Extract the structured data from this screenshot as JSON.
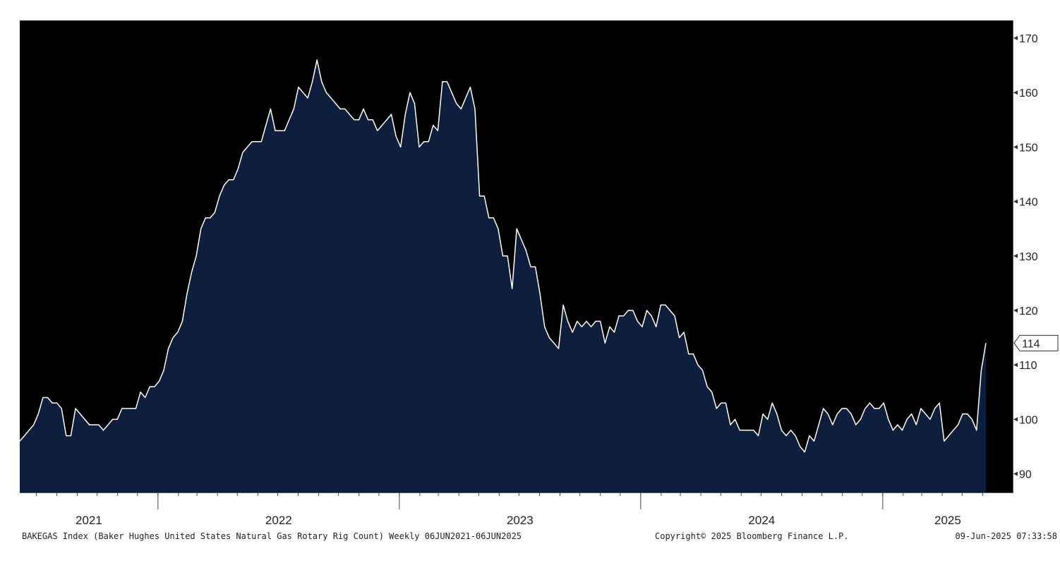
{
  "chart_data": {
    "type": "area",
    "title": "",
    "xlabel": "",
    "ylabel": "",
    "ylim": [
      86,
      172
    ],
    "yticks": [
      90,
      100,
      110,
      120,
      130,
      140,
      150,
      160,
      170
    ],
    "year_labels": [
      "2021",
      "2022",
      "2023",
      "2024",
      "2025"
    ],
    "last_value_label": "114",
    "x_start": "2021-06-06",
    "x_end": "2025-06-06",
    "frequency": "Weekly",
    "colors": {
      "line": "#ffffff",
      "fill": "#0e1f3d",
      "background": "#000000"
    },
    "series": [
      {
        "values": [
          96,
          97,
          98,
          99,
          101,
          104,
          104,
          103,
          103,
          102,
          97,
          97,
          102,
          101,
          100,
          99,
          99,
          99,
          98,
          99,
          100,
          100,
          102,
          102,
          102,
          102,
          105,
          104,
          106,
          106,
          107,
          109,
          113,
          115,
          116,
          118,
          123,
          127,
          130,
          135,
          137,
          137,
          138,
          141,
          143,
          144,
          144,
          146,
          149,
          150,
          151,
          151,
          151,
          154,
          157,
          153,
          153,
          153,
          155,
          157,
          161,
          160,
          159,
          162,
          166,
          162,
          160,
          159,
          158,
          157,
          157,
          156,
          155,
          155,
          157,
          155,
          155,
          153,
          154,
          155,
          156,
          152,
          150,
          156,
          160,
          158,
          150,
          151,
          151,
          154,
          153,
          162,
          162,
          160,
          158,
          157,
          159,
          161,
          157,
          141,
          141,
          137,
          137,
          135,
          130,
          130,
          124,
          135,
          133,
          131,
          128,
          128,
          123,
          117,
          115,
          114,
          113,
          121,
          118,
          116,
          118,
          117,
          118,
          117,
          118,
          118,
          114,
          117,
          116,
          119,
          119,
          120,
          120,
          118,
          117,
          120,
          119,
          117,
          121,
          121,
          120,
          119,
          115,
          116,
          112,
          112,
          110,
          109,
          106,
          105,
          102,
          103,
          103,
          99,
          100,
          98,
          98,
          98,
          98,
          97,
          101,
          100,
          103,
          101,
          98,
          97,
          98,
          97,
          95,
          94,
          97,
          96,
          99,
          102,
          101,
          99,
          101,
          102,
          102,
          101,
          99,
          100,
          102,
          103,
          102,
          102,
          103,
          100,
          98,
          99,
          98,
          100,
          101,
          99,
          102,
          101,
          100,
          102,
          103,
          96,
          97,
          98,
          99,
          101,
          101,
          100,
          98,
          109,
          114
        ]
      }
    ]
  },
  "footer": {
    "description": "BAKEGAS Index (Baker Hughes United States Natural Gas Rotary Rig Count)  Weekly 06JUN2021-06JUN2025",
    "copyright": "Copyright© 2025 Bloomberg Finance L.P.",
    "timestamp": "09-Jun-2025 07:33:58"
  }
}
